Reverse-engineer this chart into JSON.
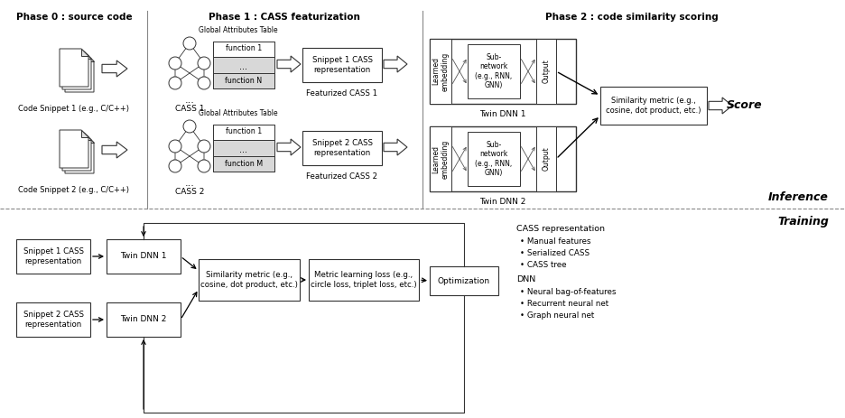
{
  "fig_width": 9.36,
  "fig_height": 4.63,
  "bg_color": "#ffffff",
  "phase0_title": "Phase 0 : source code",
  "phase1_title": "Phase 1 : CASS featurization",
  "phase2_title": "Phase 2 : code similarity scoring",
  "inference_label": "Inference",
  "training_label": "Training",
  "snippet1_label": "Code Snippet 1 (e.g., C/C++)",
  "snippet2_label": "Code Snippet 2 (e.g., C/C++)",
  "cass1_label": "CASS 1",
  "cass2_label": "CASS 2",
  "feat_cass1_label": "Featurized CASS 1",
  "feat_cass2_label": "Featurized CASS 2",
  "twin_dnn1_label": "Twin DNN 1",
  "twin_dnn2_label": "Twin DNN 2",
  "score_label": "Score",
  "similarity_metric_label": "Similarity metric (e.g.,\ncosine, dot product, etc.)",
  "global_attr_table": "Global Attributes Table",
  "function1": "function 1",
  "function_dots": "...",
  "function_N": "function N",
  "function_M": "function M",
  "snippet1_cass_repr": "Snippet 1 CASS\nrepresentation",
  "snippet2_cass_repr": "Snippet 2 CASS\nrepresentation",
  "learned_embedding": "Learned\nembedding",
  "subnetwork": "Sub-\nnetwork\n(e.g., RNN,\nGNN)",
  "output_label": "Output",
  "cass_repr_title": "CASS representation",
  "manual_features": "Manual features",
  "serialized_cass": "Serialized CASS",
  "cass_tree": "CASS tree",
  "dnn_title": "DNN",
  "neural_bag": "Neural bag-of-features",
  "recurrent_net": "Recurrent neural net",
  "graph_net": "Graph neural net",
  "train_snippet1": "Snippet 1 CASS\nrepresentation",
  "train_snippet2": "Snippet 2 CASS\nrepresentation",
  "train_twin_dnn1": "Twin DNN 1",
  "train_twin_dnn2": "Twin DNN 2",
  "train_similarity": "Similarity metric (e.g.,\ncosine, dot product, etc.)",
  "train_metric_loss": "Metric learning loss (e.g.,\ncircle loss, triplet loss, etc.)",
  "train_optimization": "Optimization"
}
